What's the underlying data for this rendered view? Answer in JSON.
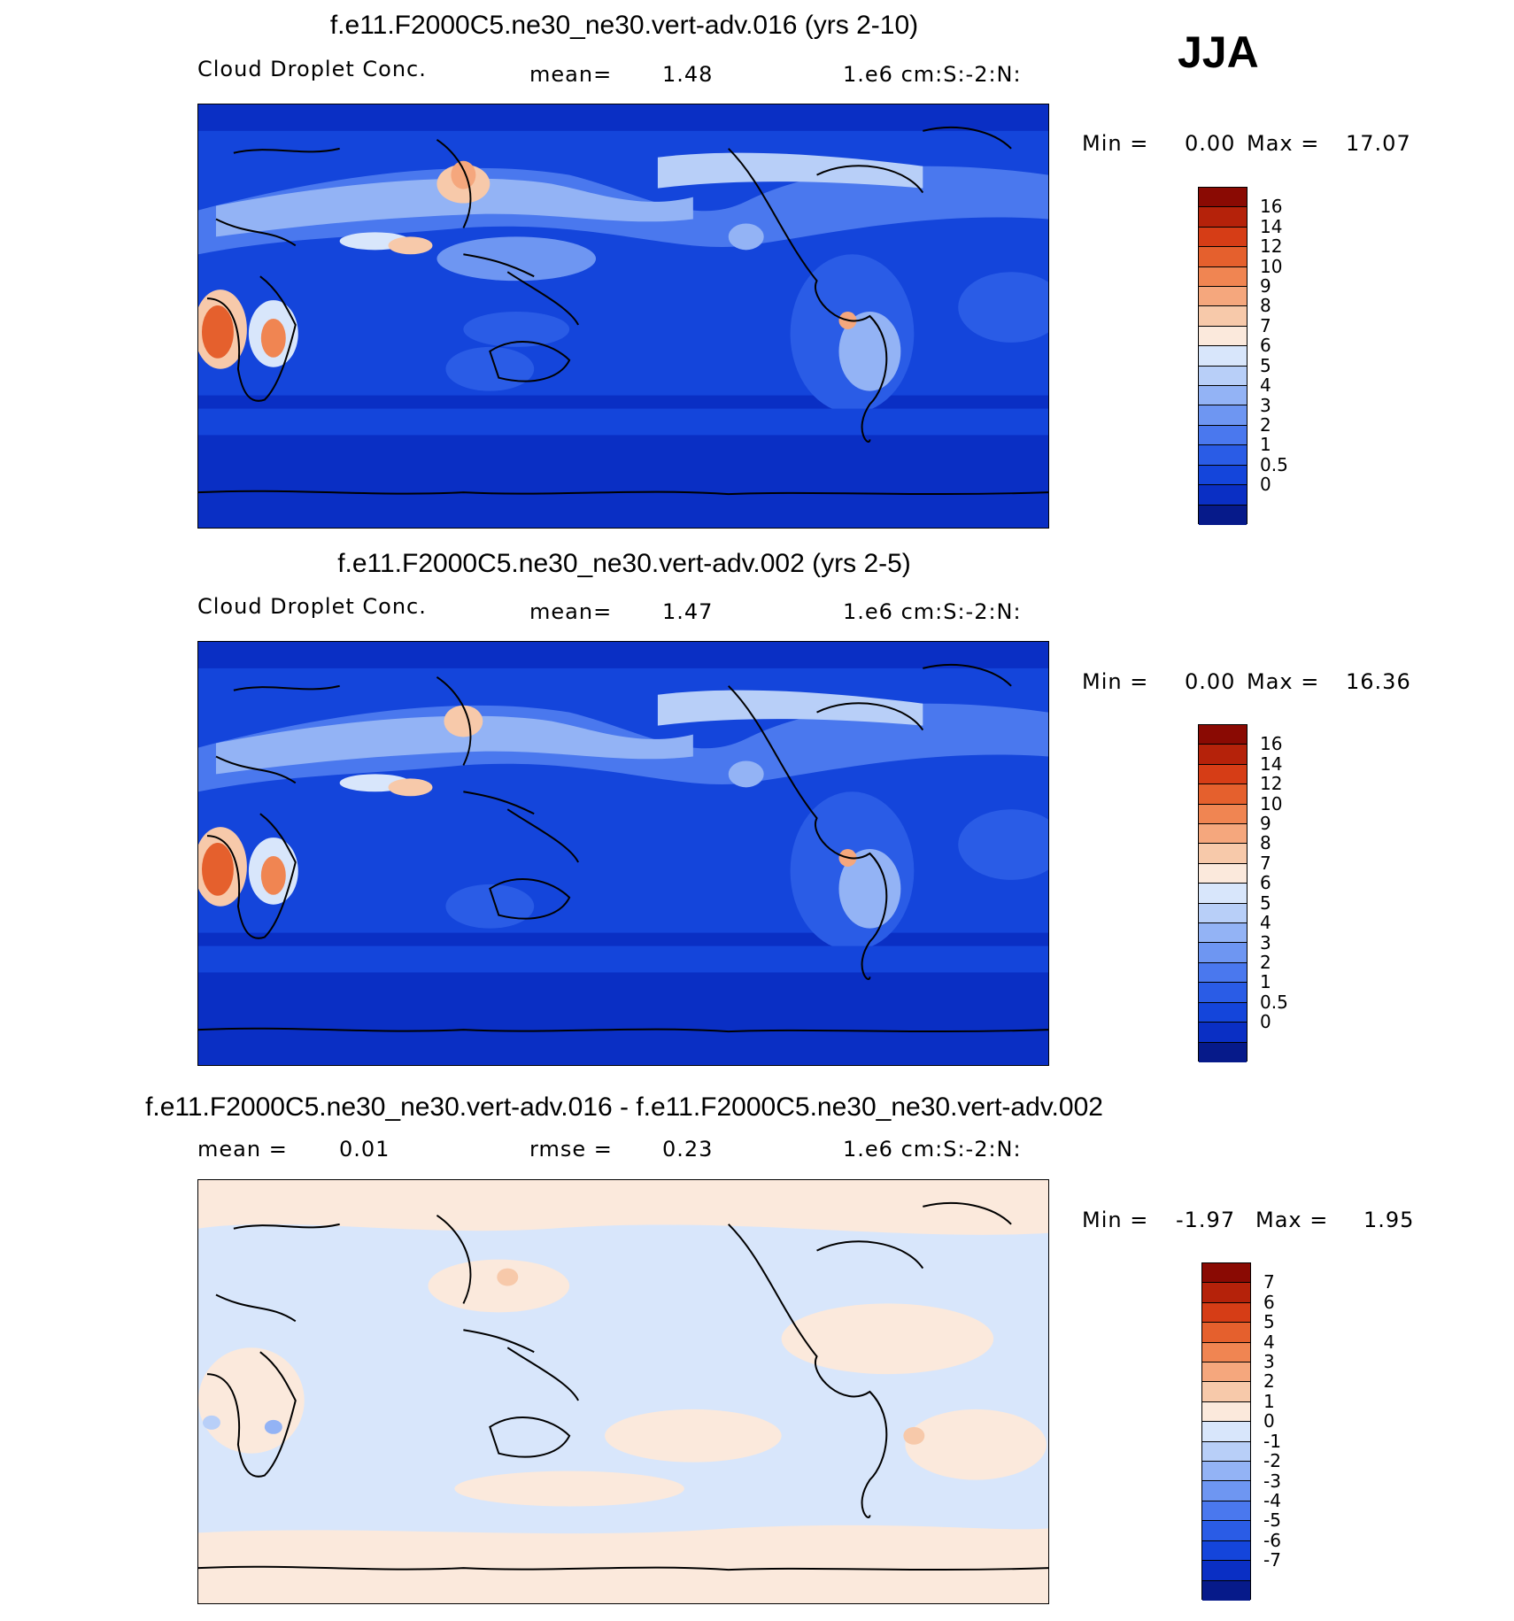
{
  "season": "JJA",
  "palette_abs": [
    "#061a8a",
    "#0a2fc4",
    "#1445db",
    "#2a5ce6",
    "#4a78ee",
    "#6e96f2",
    "#93b3f5",
    "#b8cff8",
    "#d8e6fb",
    "#fbe9dc",
    "#f7c9aa",
    "#f5a77d",
    "#f08552",
    "#e5602d",
    "#d63d16",
    "#b5220a",
    "#8a0a03"
  ],
  "palette_diff": [
    "#061a8a",
    "#0a2fc4",
    "#1445db",
    "#2a5ce6",
    "#4a78ee",
    "#6e96f2",
    "#93b3f5",
    "#b8cff8",
    "#d8e6fb",
    "#fbe9dc",
    "#f7c9aa",
    "#f5a77d",
    "#f08552",
    "#e5602d",
    "#d63d16",
    "#b5220a",
    "#8a0a03"
  ],
  "panels": [
    {
      "title": "f.e11.F2000C5.ne30_ne30.vert-adv.016 (yrs 2-10)",
      "variable": "Cloud Droplet Conc.",
      "stat_label": "mean=",
      "stat_value": "1.48",
      "units": "1.e6 cm:S:-2:N:",
      "min_label": "Min =",
      "min_value": "0.00",
      "max_label": "Max =",
      "max_value": "17.07",
      "colorbar_ticks": [
        "16",
        "14",
        "12",
        "10",
        "9",
        "8",
        "7",
        "6",
        "5",
        "4",
        "3",
        "2",
        "1",
        "0.5",
        "0"
      ]
    },
    {
      "title": "f.e11.F2000C5.ne30_ne30.vert-adv.002 (yrs 2-5)",
      "variable": "Cloud Droplet Conc.",
      "stat_label": "mean=",
      "stat_value": "1.47",
      "units": "1.e6 cm:S:-2:N:",
      "min_label": "Min =",
      "min_value": "0.00",
      "max_label": "Max =",
      "max_value": "16.36",
      "colorbar_ticks": [
        "16",
        "14",
        "12",
        "10",
        "9",
        "8",
        "7",
        "6",
        "5",
        "4",
        "3",
        "2",
        "1",
        "0.5",
        "0"
      ]
    },
    {
      "title": "f.e11.F2000C5.ne30_ne30.vert-adv.016 - f.e11.F2000C5.ne30_ne30.vert-adv.002",
      "stat_label": "mean =",
      "stat_value": "0.01",
      "rmse_label": "rmse =",
      "rmse_value": "0.23",
      "units": "1.e6 cm:S:-2:N:",
      "min_label": "Min =",
      "min_value": "-1.97",
      "max_label": "Max =",
      "max_value": "1.95",
      "colorbar_ticks": [
        "7",
        "6",
        "5",
        "4",
        "3",
        "2",
        "1",
        "0",
        "-1",
        "-2",
        "-3",
        "-4",
        "-5",
        "-6",
        "-7"
      ]
    }
  ],
  "chart_data": [
    {
      "type": "heatmap",
      "title": "f.e11.F2000C5.ne30_ne30.vert-adv.016 (yrs 2-10)",
      "variable": "Cloud Droplet Conc.",
      "units": "1.e6 cm:S:-2:N:",
      "mean": 1.48,
      "min": 0.0,
      "max": 17.07,
      "contour_levels": [
        0,
        0.5,
        1,
        2,
        3,
        4,
        5,
        6,
        7,
        8,
        9,
        10,
        12,
        14,
        16
      ],
      "season": "JJA",
      "map_projection": "cylindrical equidistant, Pacific-centered"
    },
    {
      "type": "heatmap",
      "title": "f.e11.F2000C5.ne30_ne30.vert-adv.002 (yrs 2-5)",
      "variable": "Cloud Droplet Conc.",
      "units": "1.e6 cm:S:-2:N:",
      "mean": 1.47,
      "min": 0.0,
      "max": 16.36,
      "contour_levels": [
        0,
        0.5,
        1,
        2,
        3,
        4,
        5,
        6,
        7,
        8,
        9,
        10,
        12,
        14,
        16
      ],
      "season": "JJA",
      "map_projection": "cylindrical equidistant, Pacific-centered"
    },
    {
      "type": "heatmap",
      "title": "f.e11.F2000C5.ne30_ne30.vert-adv.016 - f.e11.F2000C5.ne30_ne30.vert-adv.002",
      "units": "1.e6 cm:S:-2:N:",
      "mean": 0.01,
      "rmse": 0.23,
      "min": -1.97,
      "max": 1.95,
      "contour_levels": [
        -7,
        -6,
        -5,
        -4,
        -3,
        -2,
        -1,
        0,
        1,
        2,
        3,
        4,
        5,
        6,
        7
      ],
      "season": "JJA"
    }
  ]
}
